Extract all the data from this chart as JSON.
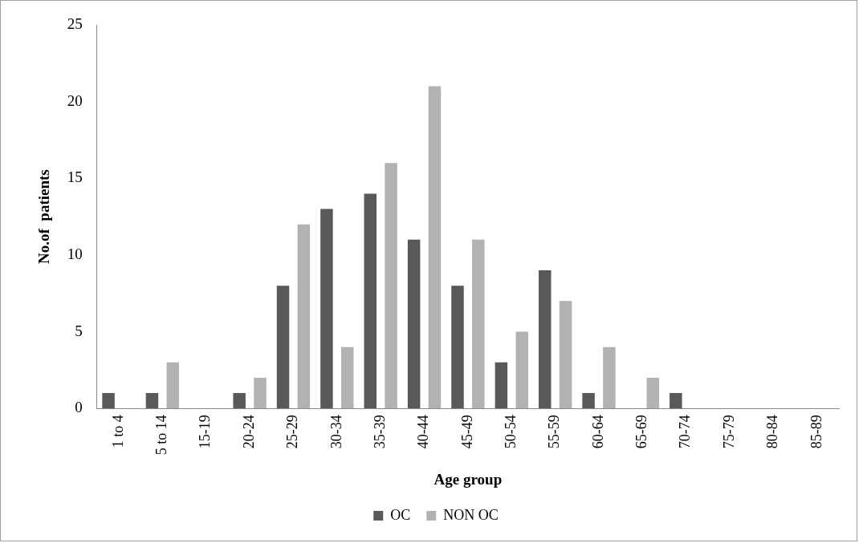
{
  "chart_data": {
    "type": "bar",
    "xlabel": "Age group",
    "ylabel": "No.of  patients",
    "categories": [
      "1 to 4",
      "5 to 14",
      "15-19",
      "20-24",
      "25-29",
      "30-34",
      "35-39",
      "40-44",
      "45-49",
      "50-54",
      "55-59",
      "60-64",
      "65-69",
      "70-74",
      "75-79",
      "80-84",
      "85-89"
    ],
    "series": [
      {
        "name": "OC",
        "color": "#595959",
        "values": [
          1,
          1,
          0,
          1,
          8,
          13,
          14,
          11,
          8,
          3,
          9,
          1,
          0,
          1,
          0,
          0,
          0
        ]
      },
      {
        "name": "NON OC",
        "color": "#b2b2b2",
        "values": [
          0,
          3,
          0,
          2,
          12,
          4,
          16,
          21,
          11,
          5,
          7,
          4,
          2,
          0,
          0,
          0,
          0
        ]
      }
    ],
    "ylim": [
      0,
      25
    ],
    "yticks": [
      0,
      5,
      10,
      15,
      20,
      25
    ],
    "grid": false,
    "legend": "bottom"
  }
}
